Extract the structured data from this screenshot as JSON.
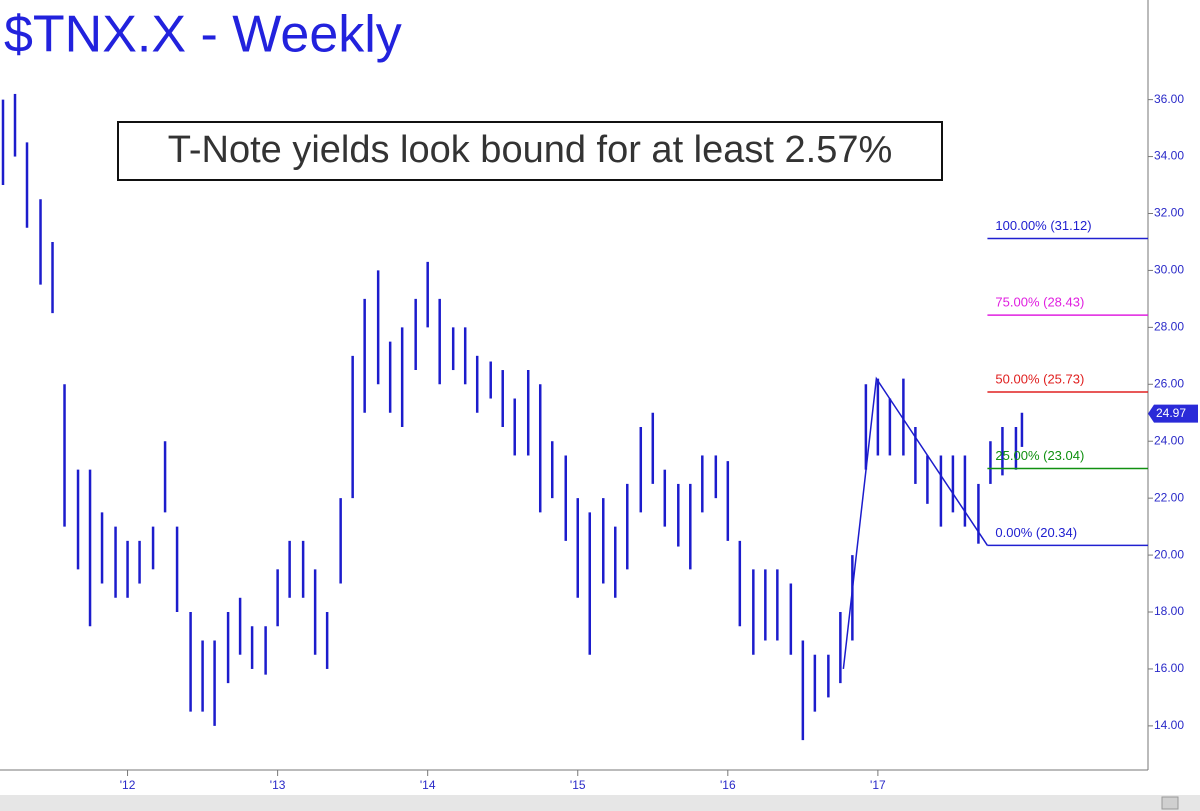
{
  "chart_data": {
    "type": "ohlc",
    "title": "$TNX.X - Weekly",
    "annotation": "T-Note yields look bound for at least 2.57%",
    "xlim": [
      2011.15,
      2018.8
    ],
    "ylim": [
      12.45,
      39.5
    ],
    "xticks": [
      {
        "value": 2012,
        "label": "'12"
      },
      {
        "value": 2013,
        "label": "'13"
      },
      {
        "value": 2014,
        "label": "'14"
      },
      {
        "value": 2015,
        "label": "'15"
      },
      {
        "value": 2016,
        "label": "'16"
      },
      {
        "value": 2017,
        "label": "'17"
      }
    ],
    "yticks": [
      {
        "value": 14,
        "label": "14.00"
      },
      {
        "value": 16,
        "label": "16.00"
      },
      {
        "value": 18,
        "label": "18.00"
      },
      {
        "value": 20,
        "label": "20.00"
      },
      {
        "value": 22,
        "label": "22.00"
      },
      {
        "value": 24,
        "label": "24.00"
      },
      {
        "value": 26,
        "label": "26.00"
      },
      {
        "value": 28,
        "label": "28.00"
      },
      {
        "value": 30,
        "label": "30.00"
      },
      {
        "value": 32,
        "label": "32.00"
      },
      {
        "value": 34,
        "label": "34.00"
      },
      {
        "value": 36,
        "label": "36.00"
      }
    ],
    "series": [
      {
        "color": "#1c1ccc",
        "x": [
          2011.17,
          2011.25,
          2011.33,
          2011.42,
          2011.5,
          2011.58,
          2011.67,
          2011.75,
          2011.83,
          2011.92,
          2012.0,
          2012.08,
          2012.17,
          2012.25,
          2012.33,
          2012.42,
          2012.5,
          2012.58,
          2012.67,
          2012.75,
          2012.83,
          2012.92,
          2013.0,
          2013.08,
          2013.17,
          2013.25,
          2013.33,
          2013.42,
          2013.5,
          2013.58,
          2013.67,
          2013.75,
          2013.83,
          2013.92,
          2014.0,
          2014.08,
          2014.17,
          2014.25,
          2014.33,
          2014.42,
          2014.5,
          2014.58,
          2014.67,
          2014.75,
          2014.83,
          2014.92,
          2015.0,
          2015.08,
          2015.17,
          2015.25,
          2015.33,
          2015.42,
          2015.5,
          2015.58,
          2015.67,
          2015.75,
          2015.83,
          2015.92,
          2016.0,
          2016.08,
          2016.17,
          2016.25,
          2016.33,
          2016.42,
          2016.5,
          2016.58,
          2016.67,
          2016.75,
          2016.83,
          2016.92,
          2017.0,
          2017.08,
          2017.17,
          2017.25,
          2017.33,
          2017.42,
          2017.5,
          2017.58,
          2017.67,
          2017.75,
          2017.83,
          2017.92,
          2017.96
        ],
        "high": [
          36.0,
          36.2,
          34.5,
          32.5,
          31.0,
          26.0,
          23.0,
          23.0,
          21.5,
          21.0,
          20.5,
          20.5,
          21.0,
          24.0,
          21.0,
          18.0,
          17.0,
          17.0,
          18.0,
          18.5,
          17.5,
          17.5,
          19.5,
          20.5,
          20.5,
          19.5,
          18.0,
          22.0,
          27.0,
          29.0,
          30.0,
          27.5,
          28.0,
          29.0,
          30.3,
          29.0,
          28.0,
          28.0,
          27.0,
          26.8,
          26.5,
          25.5,
          26.5,
          26.0,
          24.0,
          23.5,
          22.0,
          21.5,
          22.0,
          21.0,
          22.5,
          24.5,
          25.0,
          23.0,
          22.5,
          22.5,
          23.5,
          23.5,
          23.3,
          20.5,
          19.5,
          19.5,
          19.5,
          19.0,
          17.0,
          16.5,
          16.5,
          18.0,
          20.0,
          26.0,
          26.2,
          25.5,
          26.2,
          24.5,
          23.5,
          23.5,
          23.5,
          23.5,
          22.5,
          24.0,
          24.5,
          24.5,
          25.0
        ],
        "low": [
          33.0,
          34.0,
          31.5,
          29.5,
          28.5,
          21.0,
          19.5,
          17.5,
          19.0,
          18.5,
          18.5,
          19.0,
          19.5,
          21.5,
          18.0,
          14.5,
          14.5,
          14.0,
          15.5,
          16.5,
          16.0,
          15.8,
          17.5,
          18.5,
          18.5,
          16.5,
          16.0,
          19.0,
          22.0,
          25.0,
          26.0,
          25.0,
          24.5,
          26.5,
          28.0,
          26.0,
          26.5,
          26.0,
          25.0,
          25.5,
          24.5,
          23.5,
          23.5,
          21.5,
          22.0,
          20.5,
          18.5,
          16.5,
          19.0,
          18.5,
          19.5,
          21.5,
          22.5,
          21.0,
          20.3,
          19.5,
          21.5,
          22.0,
          20.5,
          17.5,
          16.5,
          17.0,
          17.0,
          16.5,
          13.5,
          14.5,
          15.0,
          15.5,
          17.0,
          23.0,
          23.5,
          23.5,
          23.5,
          22.5,
          21.8,
          21.0,
          21.5,
          21.0,
          20.4,
          22.5,
          22.8,
          23.0,
          23.8
        ]
      }
    ],
    "trendline": {
      "color": "#1c1ccc",
      "x": [
        2016.77,
        2016.99,
        2017.73
      ],
      "values": [
        16.0,
        26.2,
        20.34
      ]
    },
    "levels": [
      {
        "label": "100.00% (31.12)",
        "value": 31.12,
        "color": "#2020d0"
      },
      {
        "label": "75.00% (28.43)",
        "value": 28.43,
        "color": "#e020e0"
      },
      {
        "label": "50.00% (25.73)",
        "value": 25.73,
        "color": "#e02020"
      },
      {
        "label": "25.00% (23.04)",
        "value": 23.04,
        "color": "#109010"
      },
      {
        "label": "0.00% (20.34)",
        "value": 20.34,
        "color": "#2020d0"
      }
    ],
    "last_price": 24.97
  }
}
